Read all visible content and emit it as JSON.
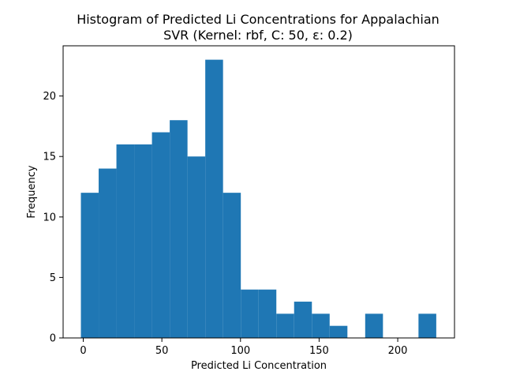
{
  "chart_data": {
    "type": "bar",
    "title_line1": "Histogram of Predicted Li Concentrations for Appalachian",
    "title_line2": "SVR (Kernel: rbf, C: 50, ε: 0.2)",
    "xlabel": "Predicted Li Concentration",
    "ylabel": "Frequency",
    "xlim": [
      -12.8,
      236.1
    ],
    "ylim": [
      0,
      24.15
    ],
    "xticks": [
      0,
      50,
      100,
      150,
      200
    ],
    "yticks": [
      0,
      5,
      10,
      15,
      20
    ],
    "bar_color": "#1f77b4",
    "bins": [
      {
        "x0": -1.5,
        "x1": 9.8,
        "count": 12
      },
      {
        "x0": 9.8,
        "x1": 21.1,
        "count": 14
      },
      {
        "x0": 21.1,
        "x1": 32.4,
        "count": 16
      },
      {
        "x0": 32.4,
        "x1": 43.7,
        "count": 16
      },
      {
        "x0": 43.7,
        "x1": 55.0,
        "count": 17
      },
      {
        "x0": 55.0,
        "x1": 66.3,
        "count": 18
      },
      {
        "x0": 66.3,
        "x1": 77.6,
        "count": 15
      },
      {
        "x0": 77.6,
        "x1": 88.9,
        "count": 23
      },
      {
        "x0": 88.9,
        "x1": 100.2,
        "count": 12
      },
      {
        "x0": 100.2,
        "x1": 111.5,
        "count": 4
      },
      {
        "x0": 111.5,
        "x1": 122.8,
        "count": 4
      },
      {
        "x0": 122.8,
        "x1": 134.1,
        "count": 2
      },
      {
        "x0": 134.1,
        "x1": 145.4,
        "count": 3
      },
      {
        "x0": 145.4,
        "x1": 156.7,
        "count": 2
      },
      {
        "x0": 156.7,
        "x1": 168.0,
        "count": 1
      },
      {
        "x0": 168.0,
        "x1": 179.3,
        "count": 0
      },
      {
        "x0": 179.3,
        "x1": 190.6,
        "count": 2
      },
      {
        "x0": 190.6,
        "x1": 201.9,
        "count": 0
      },
      {
        "x0": 201.9,
        "x1": 213.2,
        "count": 0
      },
      {
        "x0": 213.2,
        "x1": 224.5,
        "count": 2
      }
    ]
  }
}
